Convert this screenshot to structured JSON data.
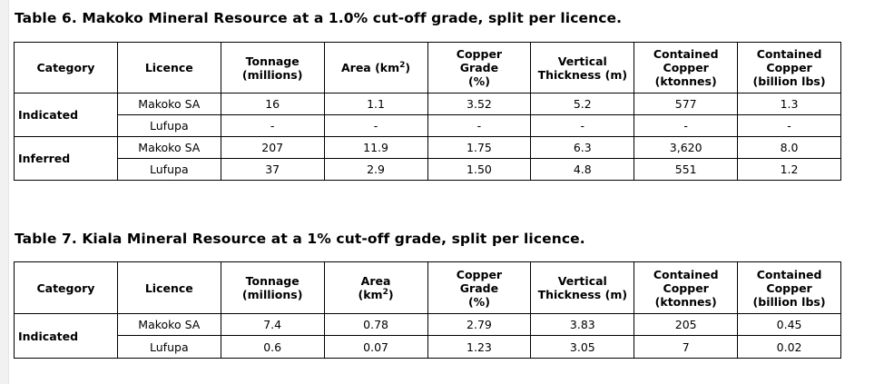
{
  "tables": [
    {
      "title": "Table 6. Makoko Mineral Resource at a 1.0% cut-off grade, split per licence.",
      "headers": [
        "Category",
        "Licence",
        "Tonnage\n(millions)",
        "Area (km",
        "Copper\nGrade\n(%)",
        "Vertical\nThickness (m)",
        "Contained\nCopper\n(ktonnes)",
        "Contained\nCopper\n(billion lbs)"
      ],
      "area_sup": "2",
      "area_suffix": ")",
      "groups": [
        {
          "category": "Indicated",
          "rows": [
            [
              "Makoko SA",
              "16",
              "1.1",
              "3.52",
              "5.2",
              "577",
              "1.3"
            ],
            [
              "Lufupa",
              "-",
              "-",
              "-",
              "-",
              "-",
              "-"
            ]
          ]
        },
        {
          "category": "Inferred",
          "rows": [
            [
              "Makoko SA",
              "207",
              "11.9",
              "1.75",
              "6.3",
              "3,620",
              "8.0"
            ],
            [
              "Lufupa",
              "37",
              "2.9",
              "1.50",
              "4.8",
              "551",
              "1.2"
            ]
          ]
        }
      ]
    },
    {
      "title": "Table 7. Kiala Mineral Resource at a 1% cut-off grade, split per licence.",
      "headers": [
        "Category",
        "Licence",
        "Tonnage\n(millions)",
        "Area\n(km",
        "Copper\nGrade\n(%)",
        "Vertical\nThickness (m)",
        "Contained\nCopper\n(ktonnes)",
        "Contained\nCopper\n(billion lbs)"
      ],
      "area_sup": "2",
      "area_suffix": ")",
      "groups": [
        {
          "category": "Indicated",
          "rows": [
            [
              "Makoko SA",
              "7.4",
              "0.78",
              "2.79",
              "3.83",
              "205",
              "0.45"
            ],
            [
              "Lufupa",
              "0.6",
              "0.07",
              "1.23",
              "3.05",
              "7",
              "0.02"
            ]
          ]
        }
      ]
    }
  ]
}
